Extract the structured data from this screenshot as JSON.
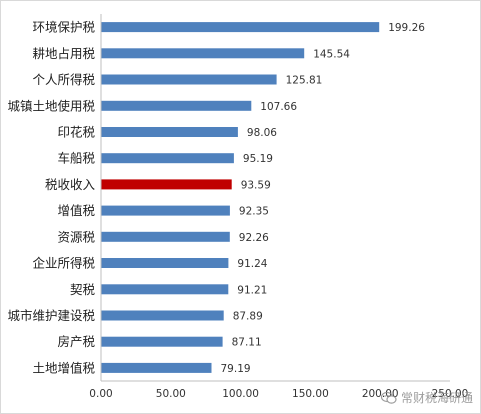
{
  "chart_data": {
    "type": "bar",
    "orientation": "horizontal",
    "categories": [
      "环境保护税",
      "耕地占用税",
      "个人所得税",
      "城镇土地使用税",
      "印花税",
      "车船税",
      "税收收入",
      "增值税",
      "资源税",
      "企业所得税",
      "契税",
      "城市维护建设税",
      "房产税",
      "土地增值税"
    ],
    "values": [
      199.26,
      145.54,
      125.81,
      107.66,
      98.06,
      95.19,
      93.59,
      92.35,
      92.26,
      91.24,
      91.21,
      87.89,
      87.11,
      79.19
    ],
    "value_labels": [
      "199.26",
      "145.54",
      "125.81",
      "107.66",
      "98.06",
      "95.19",
      "93.59",
      "92.35",
      "92.26",
      "91.24",
      "91.21",
      "87.89",
      "87.11",
      "79.19"
    ],
    "xlim": [
      0,
      250
    ],
    "x_ticks": [
      0,
      50,
      100,
      150,
      200,
      250
    ],
    "x_tick_labels": [
      "0.00",
      "50.00",
      "100.00",
      "150.00",
      "200.00",
      "250.00"
    ],
    "grid": false,
    "colors": {
      "default_bar": "#4f81bd",
      "highlight_bar": "#c00000",
      "axis": "#bfbfbf",
      "text": "#222222"
    },
    "highlight_category": "税收收入",
    "title": "",
    "xlabel": "",
    "ylabel": ""
  },
  "watermark": {
    "text": "常财税海研通",
    "icon": "wechat-icon"
  }
}
